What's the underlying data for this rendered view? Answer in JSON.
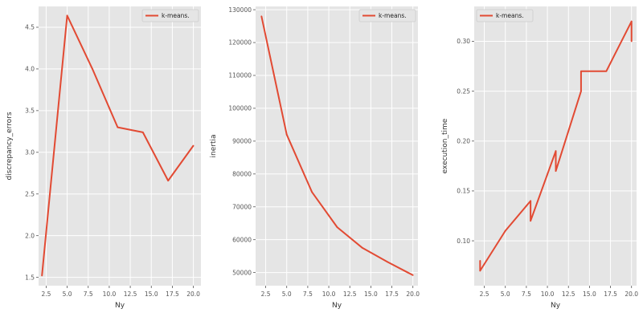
{
  "chart_data": [
    {
      "type": "line",
      "xlabel": "Ny",
      "ylabel": "discrepancy_errors",
      "xlim": [
        1.6,
        20.9
      ],
      "ylim": [
        1.4,
        4.75
      ],
      "xticks": [
        "2.5",
        "5.0",
        "7.5",
        "10.0",
        "12.5",
        "15.0",
        "17.5",
        "20.0"
      ],
      "yticks": [
        "1.5",
        "2.0",
        "2.5",
        "3.0",
        "3.5",
        "4.0",
        "4.5"
      ],
      "grid": true,
      "legend_position": "top-right",
      "series": [
        {
          "name": "k-means.",
          "color": "#e24a33",
          "x": [
            2,
            5,
            8,
            11,
            14,
            17,
            20
          ],
          "y": [
            1.52,
            4.64,
            4.0,
            3.3,
            3.24,
            2.66,
            3.08
          ]
        }
      ]
    },
    {
      "type": "line",
      "xlabel": "Ny",
      "ylabel": "inertia",
      "xlim": [
        1.3,
        20.6
      ],
      "ylim": [
        46000,
        131000
      ],
      "xticks": [
        "2.5",
        "5.0",
        "7.5",
        "10.0",
        "12.5",
        "15.0",
        "17.5",
        "20.0"
      ],
      "yticks": [
        "50000",
        "60000",
        "70000",
        "80000",
        "90000",
        "100000",
        "110000",
        "120000",
        "130000"
      ],
      "grid": true,
      "legend_position": "top-right",
      "series": [
        {
          "name": "k-means.",
          "color": "#e24a33",
          "x": [
            2,
            5,
            8,
            11,
            14,
            17,
            20
          ],
          "y": [
            128000,
            92000,
            74500,
            63800,
            57500,
            53200,
            49200
          ]
        }
      ]
    },
    {
      "type": "line",
      "xlabel": "Ny",
      "ylabel": "execution_time",
      "xlim": [
        1.3,
        20.6
      ],
      "ylim": [
        0.055,
        0.335
      ],
      "xticks": [
        "2.5",
        "5.0",
        "7.5",
        "10.0",
        "12.5",
        "15.0",
        "17.5",
        "20.0"
      ],
      "yticks": [
        "0.10",
        "0.15",
        "0.20",
        "0.25",
        "0.30"
      ],
      "grid": true,
      "legend_position": "top-left",
      "series": [
        {
          "name": "k-means.",
          "color": "#e24a33",
          "x": [
            2,
            2,
            5,
            8,
            8,
            11,
            11,
            14,
            14,
            17,
            20,
            20
          ],
          "y": [
            0.08,
            0.07,
            0.11,
            0.14,
            0.12,
            0.19,
            0.17,
            0.25,
            0.27,
            0.27,
            0.32,
            0.3
          ]
        }
      ]
    }
  ]
}
